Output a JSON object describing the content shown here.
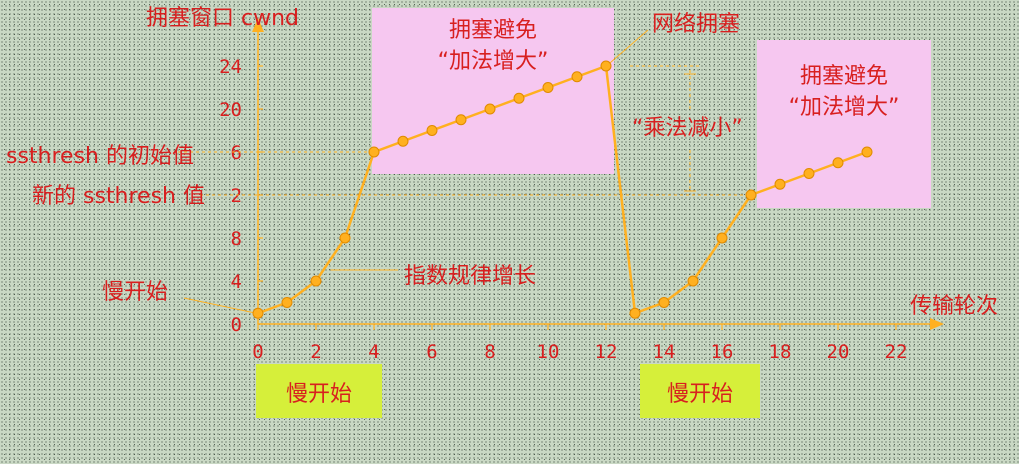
{
  "chart_data": {
    "type": "line",
    "xlabel": "传输轮次",
    "ylabel": "拥塞窗口 cwnd",
    "x_ticks": [
      0,
      2,
      4,
      6,
      8,
      10,
      12,
      14,
      16,
      18,
      20,
      22
    ],
    "y_ticks": [
      0,
      4,
      8,
      12,
      16,
      20,
      24
    ],
    "y_tick_labels": [
      "0",
      "4",
      "8",
      "",
      "",
      "20",
      "24"
    ],
    "xlim": [
      0,
      23
    ],
    "ylim": [
      0,
      26
    ],
    "series": [
      {
        "x": [
          0,
          1,
          2,
          3,
          4,
          5,
          6,
          7,
          8,
          9,
          10,
          11,
          12,
          13,
          14,
          15,
          16,
          17,
          18,
          19,
          20,
          21
        ],
        "values": [
          1,
          2,
          4,
          8,
          16,
          17,
          18,
          19,
          20,
          21,
          22,
          23,
          24,
          1,
          2,
          4,
          8,
          12,
          13,
          14,
          15,
          16
        ]
      }
    ],
    "reference_lines": {
      "initial_ssthresh": 16,
      "new_ssthresh": 12
    },
    "color": "#ffb020"
  },
  "annotations": {
    "ssthresh_initial": "ssthresh 的初始值",
    "ssthresh_new": "新的 ssthresh 值",
    "slow_start_left": "慢开始",
    "exponential": "指数规律增长",
    "network_congestion": "网络拥塞",
    "mult_decrease": "“乘法减小”",
    "ca1_line1": "拥塞避免",
    "ca1_line2": "“加法增大”",
    "ca2_line1": "拥塞避免",
    "ca2_line2": "“加法增大”",
    "slow_start_box1": "慢开始",
    "slow_start_box2": "慢开始",
    "y_partial_16": "6",
    "y_partial_12": "2"
  },
  "colors": {
    "text": "#d81f1f",
    "line": "#ffb020",
    "pink": "#f6c7f0",
    "lime": "#d6ef3a"
  }
}
